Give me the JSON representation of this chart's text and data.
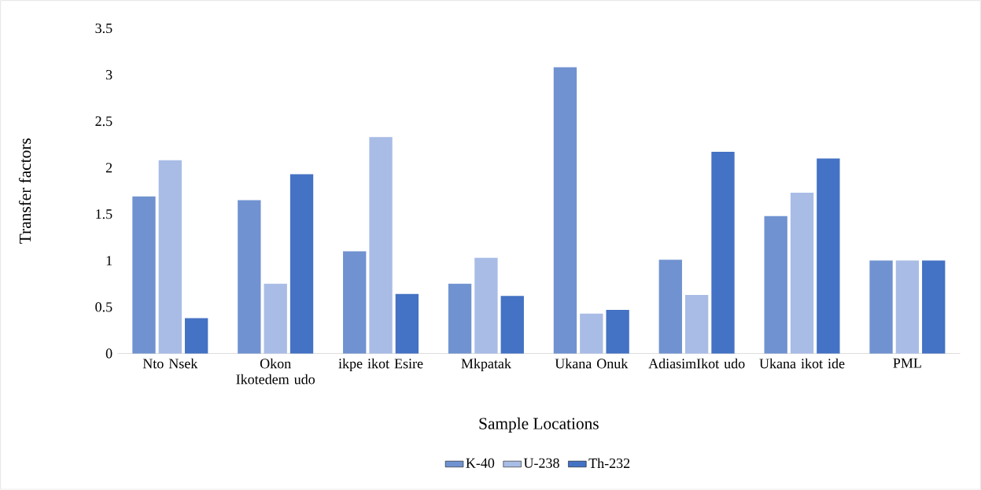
{
  "chart_data": {
    "type": "bar",
    "xlabel": "Sample Locations",
    "ylabel": "Transfer  factors",
    "categories": [
      "Nto Nsek",
      "Okon Ikotedem udo",
      "ikpe ikot Esire",
      "Mkpatak",
      "Ukana Onuk",
      "AdiasimIkot udo",
      "Ukana ikot ide",
      "PML"
    ],
    "series": [
      {
        "name": "K-40",
        "color": "#7092d0",
        "values": [
          1.69,
          1.65,
          1.1,
          0.75,
          3.08,
          1.01,
          1.48,
          1.0
        ]
      },
      {
        "name": "U-238",
        "color": "#a8bce6",
        "values": [
          2.08,
          0.75,
          2.33,
          1.03,
          0.43,
          0.63,
          1.73,
          1.0
        ]
      },
      {
        "name": "Th-232",
        "color": "#4472c4",
        "values": [
          0.38,
          1.93,
          0.64,
          0.62,
          0.47,
          2.17,
          2.1,
          1.0
        ]
      }
    ],
    "ylim": [
      0,
      3.5
    ],
    "yticks": [
      0,
      0.5,
      1,
      1.5,
      2,
      2.5,
      3,
      3.5
    ],
    "legend": "bottom"
  }
}
